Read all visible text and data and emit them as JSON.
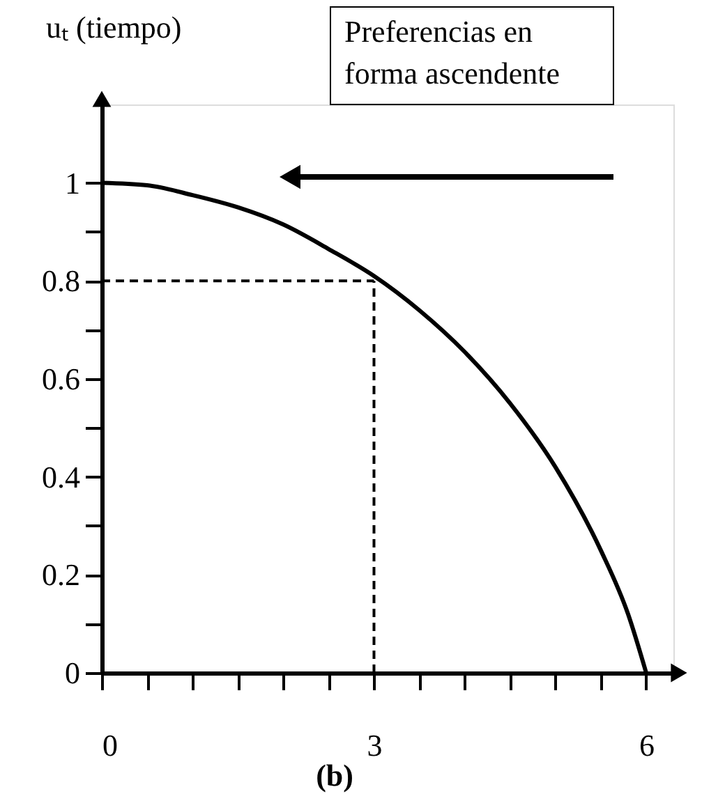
{
  "chart_data": {
    "type": "line",
    "ylabel": "uₜ (tiempo)",
    "x": [
      0,
      0.5,
      1,
      1.5,
      2,
      2.5,
      3,
      3.5,
      4,
      4.5,
      5,
      5.5,
      5.8,
      6
    ],
    "series": [
      {
        "color": "#000000",
        "values": [
          1,
          0.995,
          0.975,
          0.95,
          0.915,
          0.865,
          0.81,
          0.74,
          0.655,
          0.55,
          0.42,
          0.25,
          0.12,
          0
        ]
      }
    ],
    "xlim": [
      0,
      6.3
    ],
    "ylim": [
      0,
      1.16
    ],
    "xticks": [
      0,
      {
        "value": 0.5,
        "label": null
      },
      {
        "value": 1,
        "label": null
      },
      {
        "value": 1.5,
        "label": null
      },
      {
        "value": 2,
        "label": null
      },
      {
        "value": 2.5,
        "label": null
      },
      3,
      {
        "value": 3.5,
        "label": null
      },
      {
        "value": 4,
        "label": null
      },
      {
        "value": 4.5,
        "label": null
      },
      {
        "value": 5,
        "label": null
      },
      {
        "value": 5.5,
        "label": null
      },
      6
    ],
    "yticks": [
      0,
      {
        "value": 0.1,
        "label": null
      },
      0.2,
      {
        "value": 0.3,
        "label": null
      },
      0.4,
      {
        "value": 0.5,
        "label": null
      },
      0.6,
      {
        "value": 0.7,
        "label": null
      },
      0.8,
      {
        "value": 0.9,
        "label": null
      },
      1
    ],
    "ref_lines": [
      {
        "axis": "x",
        "value": 3,
        "color": "#000000",
        "line_style": "dashed"
      },
      {
        "axis": "y",
        "value": 0.8,
        "color": "#000000",
        "line_style": "dashed"
      }
    ],
    "annotations": [
      "Preferencias en forma ascendente",
      "(b)"
    ],
    "grid": false,
    "marker": "none",
    "line_style": "solid"
  }
}
